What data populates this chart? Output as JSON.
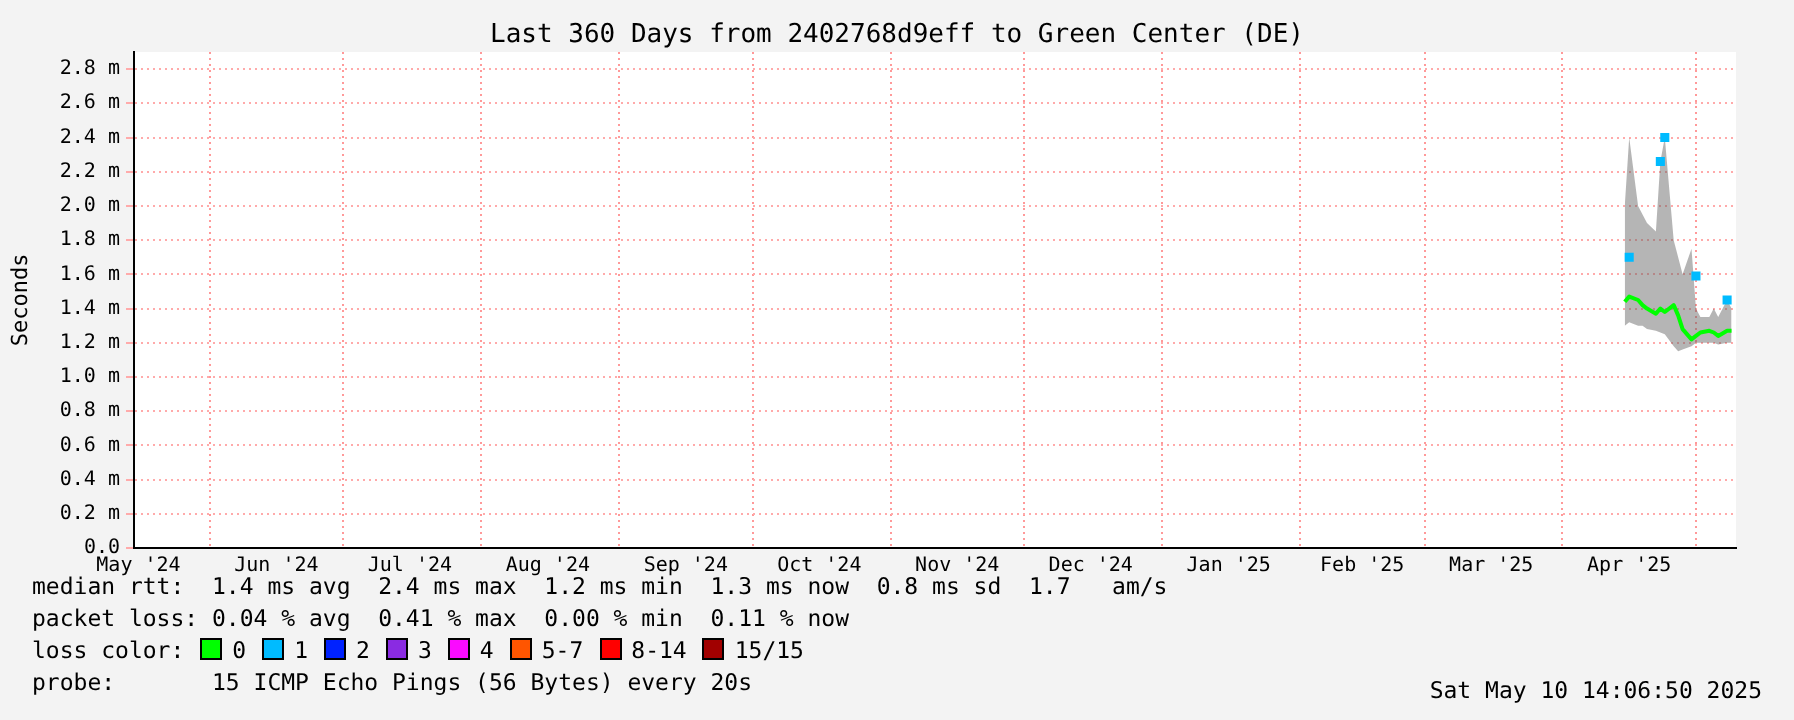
{
  "chart_data": {
    "type": "line",
    "title": "Last 360 Days from 2402768d9eff to Green Center (DE)",
    "ylabel": "Seconds",
    "x": [
      "2025-04-15",
      "2025-04-16",
      "2025-04-18",
      "2025-04-19",
      "2025-04-20",
      "2025-04-22",
      "2025-04-23",
      "2025-04-24",
      "2025-04-26",
      "2025-04-27",
      "2025-04-28",
      "2025-04-30",
      "2025-05-01",
      "2025-05-02",
      "2025-05-04",
      "2025-05-05",
      "2025-05-06",
      "2025-05-08",
      "2025-05-09"
    ],
    "series": [
      {
        "name": "0",
        "color": "#00ff00",
        "values": [
          1.44,
          1.47,
          1.45,
          1.42,
          1.4,
          1.37,
          1.4,
          1.38,
          1.42,
          1.36,
          1.28,
          1.22,
          1.24,
          1.26,
          1.27,
          1.26,
          1.24,
          1.27,
          1.27
        ],
        "lower": [
          1.3,
          1.32,
          1.3,
          1.3,
          1.28,
          1.27,
          1.26,
          1.25,
          1.18,
          1.15,
          1.16,
          1.18,
          1.2,
          1.2,
          1.2,
          1.2,
          1.19,
          1.2,
          1.2
        ],
        "upper": [
          2.0,
          2.4,
          2.0,
          1.95,
          1.9,
          1.85,
          2.26,
          2.4,
          1.8,
          1.7,
          1.6,
          1.75,
          1.4,
          1.35,
          1.35,
          1.4,
          1.35,
          1.45,
          1.4
        ]
      },
      {
        "name": "1",
        "color": "#00bbff",
        "type": "scatter",
        "marker": "square",
        "values": [
          null,
          1.7,
          null,
          null,
          null,
          null,
          2.26,
          2.4,
          null,
          null,
          null,
          null,
          1.59,
          null,
          null,
          null,
          null,
          1.45,
          null
        ]
      },
      {
        "name": "2",
        "color": "#0022ff",
        "type": "scatter",
        "values": [
          null,
          null,
          null,
          null,
          null,
          null,
          null,
          null,
          null,
          null,
          null,
          null,
          null,
          null,
          null,
          null,
          null,
          null,
          null
        ]
      },
      {
        "name": "3",
        "color": "#8a2be2",
        "type": "scatter",
        "values": [
          null,
          null,
          null,
          null,
          null,
          null,
          null,
          null,
          null,
          null,
          null,
          null,
          null,
          null,
          null,
          null,
          null,
          null,
          null
        ]
      },
      {
        "name": "4",
        "color": "#fa0bff",
        "type": "scatter",
        "values": [
          null,
          null,
          null,
          null,
          null,
          null,
          null,
          null,
          null,
          null,
          null,
          null,
          null,
          null,
          null,
          null,
          null,
          null,
          null
        ]
      },
      {
        "name": "5-7",
        "color": "#ff5500",
        "type": "scatter",
        "values": [
          null,
          null,
          null,
          null,
          null,
          null,
          null,
          null,
          null,
          null,
          null,
          null,
          null,
          null,
          null,
          null,
          null,
          null,
          null
        ]
      },
      {
        "name": "8-14",
        "color": "#ff0000",
        "type": "scatter",
        "values": [
          null,
          null,
          null,
          null,
          null,
          null,
          null,
          null,
          null,
          null,
          null,
          null,
          null,
          null,
          null,
          null,
          null,
          null,
          null
        ]
      },
      {
        "name": "15/15",
        "color": "#a10000",
        "type": "scatter",
        "values": [
          null,
          null,
          null,
          null,
          null,
          null,
          null,
          null,
          null,
          null,
          null,
          null,
          null,
          null,
          null,
          null,
          null,
          null,
          null
        ]
      }
    ],
    "xlim": [
      "2024-05-15",
      "2025-05-10"
    ],
    "xticks": [
      {
        "value": "2024-05-16",
        "label": "May '24"
      },
      {
        "value": "2024-06-01",
        "label": null
      },
      {
        "value": "2024-06-16",
        "label": "Jun '24"
      },
      {
        "value": "2024-07-01",
        "label": null
      },
      {
        "value": "2024-07-16",
        "label": "Jul '24"
      },
      {
        "value": "2024-08-01",
        "label": null
      },
      {
        "value": "2024-08-16",
        "label": "Aug '24"
      },
      {
        "value": "2024-09-01",
        "label": null
      },
      {
        "value": "2024-09-16",
        "label": "Sep '24"
      },
      {
        "value": "2024-10-01",
        "label": null
      },
      {
        "value": "2024-10-16",
        "label": "Oct '24"
      },
      {
        "value": "2024-11-01",
        "label": null
      },
      {
        "value": "2024-11-16",
        "label": "Nov '24"
      },
      {
        "value": "2024-12-01",
        "label": null
      },
      {
        "value": "2024-12-16",
        "label": "Dec '24"
      },
      {
        "value": "2025-01-01",
        "label": null
      },
      {
        "value": "2025-01-16",
        "label": "Jan '25"
      },
      {
        "value": "2025-02-01",
        "label": null
      },
      {
        "value": "2025-02-15",
        "label": "Feb '25"
      },
      {
        "value": "2025-03-01",
        "label": null
      },
      {
        "value": "2025-03-16",
        "label": "Mar '25"
      },
      {
        "value": "2025-04-01",
        "label": null
      },
      {
        "value": "2025-04-16",
        "label": "Apr '25"
      },
      {
        "value": "2025-05-01",
        "label": null
      }
    ],
    "ylim": [
      0,
      2.9
    ],
    "yticks": [
      {
        "value": 0,
        "label": "0.0"
      },
      {
        "value": 0.2,
        "label": "0.2 m"
      },
      {
        "value": 0.4,
        "label": "0.4 m"
      },
      {
        "value": 0.6,
        "label": "0.6 m"
      },
      {
        "value": 0.8,
        "label": "0.8 m"
      },
      {
        "value": 1.0,
        "label": "1.0 m"
      },
      {
        "value": 1.2,
        "label": "1.2 m"
      },
      {
        "value": 1.4,
        "label": "1.4 m"
      },
      {
        "value": 1.6,
        "label": "1.6 m"
      },
      {
        "value": 1.8,
        "label": "1.8 m"
      },
      {
        "value": 2.0,
        "label": "2.0 m"
      },
      {
        "value": 2.2,
        "label": "2.2 m"
      },
      {
        "value": 2.4,
        "label": "2.4 m"
      },
      {
        "value": 2.6,
        "label": "2.6 m"
      },
      {
        "value": 2.8,
        "label": "2.8 m"
      }
    ],
    "grid": true,
    "legend": "bottom",
    "annotations": [
      "median rtt:  1.4 ms avg  2.4 ms max  1.2 ms min  1.3 ms now  0.8 ms sd  1.7   am/s",
      "packet loss: 0.04 % avg  0.41 % max  0.00 % min  0.11 % now",
      "loss color:",
      "probe:       15 ICMP Echo Pings (56 Bytes) every 20s",
      "Sat May 10 14:06:50 2025"
    ]
  }
}
